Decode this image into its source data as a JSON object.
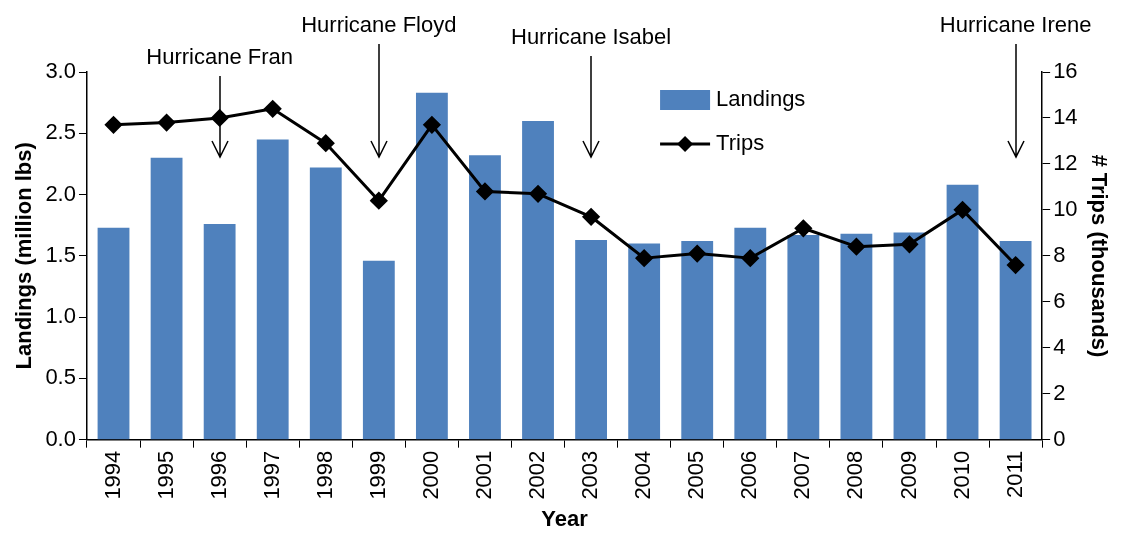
{
  "chart_data": {
    "type": "bar",
    "xlabel": "Year",
    "ylabel": "Landings (million lbs)",
    "y2label": "# Trips (thousands)",
    "categories": [
      "1994",
      "1995",
      "1996",
      "1997",
      "1998",
      "1999",
      "2000",
      "2001",
      "2002",
      "2003",
      "2004",
      "2005",
      "2006",
      "2007",
      "2008",
      "2009",
      "2010",
      "2011"
    ],
    "series": [
      {
        "name": "Landings",
        "color": "#4f81bd",
        "values": [
          1.73,
          2.3,
          1.76,
          2.45,
          2.22,
          1.46,
          2.83,
          2.32,
          2.6,
          1.63,
          1.6,
          1.62,
          1.73,
          1.67,
          1.68,
          1.69,
          2.08,
          1.62
        ]
      },
      {
        "name": "Trips",
        "type": "line",
        "axis": "y2",
        "color": "#000000",
        "marker": "diamond",
        "values": [
          13.7,
          13.8,
          14.0,
          14.4,
          12.9,
          10.4,
          13.7,
          10.8,
          10.7,
          9.7,
          7.9,
          8.1,
          7.9,
          9.2,
          8.4,
          8.5,
          10.0,
          7.6
        ]
      }
    ],
    "ylim": [
      0,
      3
    ],
    "yticks": [
      {
        "value": 0,
        "label": "0.0"
      },
      0.5,
      {
        "value": 1,
        "label": "1.0"
      },
      1.5,
      {
        "value": 2,
        "label": "2.0"
      },
      2.5,
      {
        "value": 3,
        "label": "3.0"
      }
    ],
    "y2lim": [
      0,
      16
    ],
    "y2ticks": [
      0,
      2,
      4,
      6,
      8,
      10,
      12,
      14,
      16
    ],
    "annotations": [
      {
        "text": "Hurricane Fran",
        "x": "1996"
      },
      {
        "text": "Hurricane Floyd",
        "x": "1999"
      },
      {
        "text": "Hurricane Isabel",
        "x": "2003"
      },
      {
        "text": "Hurricane Irene",
        "x": "2011"
      }
    ],
    "legend": "top",
    "grid": false
  }
}
